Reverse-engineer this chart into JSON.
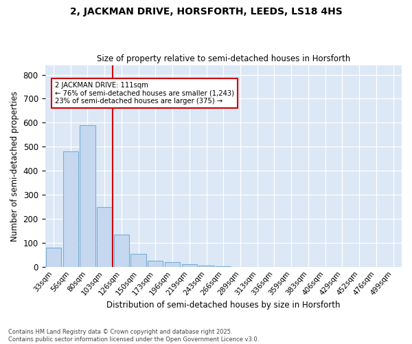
{
  "title_line1": "2, JACKMAN DRIVE, HORSFORTH, LEEDS, LS18 4HS",
  "title_line2": "Size of property relative to semi-detached houses in Horsforth",
  "xlabel": "Distribution of semi-detached houses by size in Horsforth",
  "ylabel": "Number of semi-detached properties",
  "categories": [
    "33sqm",
    "56sqm",
    "80sqm",
    "103sqm",
    "126sqm",
    "150sqm",
    "173sqm",
    "196sqm",
    "219sqm",
    "243sqm",
    "266sqm",
    "289sqm",
    "313sqm",
    "336sqm",
    "359sqm",
    "383sqm",
    "406sqm",
    "429sqm",
    "452sqm",
    "476sqm",
    "499sqm"
  ],
  "values": [
    80,
    480,
    590,
    250,
    135,
    55,
    25,
    20,
    12,
    5,
    3,
    0,
    0,
    0,
    0,
    0,
    0,
    0,
    0,
    0,
    0
  ],
  "bar_color": "#c5d8f0",
  "bar_edge_color": "#7aadd4",
  "bg_color": "#dce8f5",
  "fig_bg_color": "#ffffff",
  "grid_color": "#ffffff",
  "property_label": "2 JACKMAN DRIVE: 111sqm",
  "pct_smaller": 76,
  "count_smaller": 1243,
  "pct_larger": 23,
  "count_larger": 375,
  "vline_color": "#cc0000",
  "annotation_box_facecolor": "#ffffff",
  "annotation_box_edgecolor": "#cc0000",
  "ylim": [
    0,
    840
  ],
  "yticks": [
    0,
    100,
    200,
    300,
    400,
    500,
    600,
    700,
    800
  ],
  "footer": "Contains HM Land Registry data © Crown copyright and database right 2025.\nContains public sector information licensed under the Open Government Licence v3.0."
}
